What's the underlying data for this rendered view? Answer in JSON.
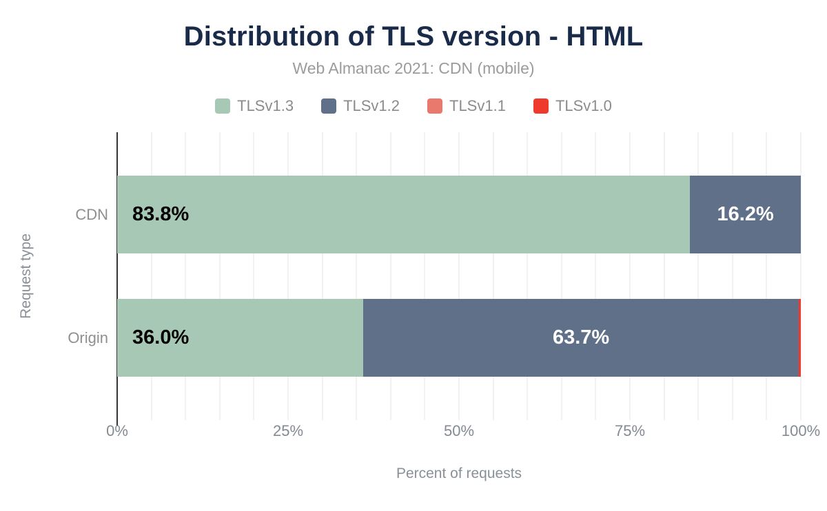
{
  "chart_data": {
    "type": "bar",
    "orientation": "horizontal",
    "stacked": true,
    "title": "Distribution of TLS version - HTML",
    "subtitle": "Web Almanac 2021: CDN (mobile)",
    "xlabel": "Percent of requests",
    "ylabel": "Request type",
    "categories": [
      "CDN",
      "Origin"
    ],
    "series": [
      {
        "name": "TLSv1.3",
        "color": "#a7c8b4",
        "values": [
          83.8,
          36.0
        ]
      },
      {
        "name": "TLSv1.2",
        "color": "#5f7088",
        "values": [
          16.2,
          63.7
        ]
      },
      {
        "name": "TLSv1.1",
        "color": "#e8796c",
        "values": [
          0,
          0
        ]
      },
      {
        "name": "TLSv1.0",
        "color": "#ee392c",
        "values": [
          0,
          0.3
        ]
      }
    ],
    "xlim": [
      0,
      100
    ],
    "x_ticks": [
      {
        "value": 0,
        "label": "0%"
      },
      {
        "value": 25,
        "label": "25%"
      },
      {
        "value": 50,
        "label": "50%"
      },
      {
        "value": 75,
        "label": "75%"
      },
      {
        "value": 100,
        "label": "100%"
      }
    ],
    "grid_step_percent": 5,
    "data_label_min_percent": 5,
    "data_label_format_decimals": 1,
    "legend_position": "top",
    "grid": true,
    "colors": {
      "title": "#1a2b49",
      "subtitle": "#9b9b9b",
      "axis_line": "#333333",
      "gridline": "#f2f2f2",
      "tick_label": "#848a92",
      "data_label_on_light": "#000000",
      "data_label_on_dark": "#ffffff"
    }
  }
}
